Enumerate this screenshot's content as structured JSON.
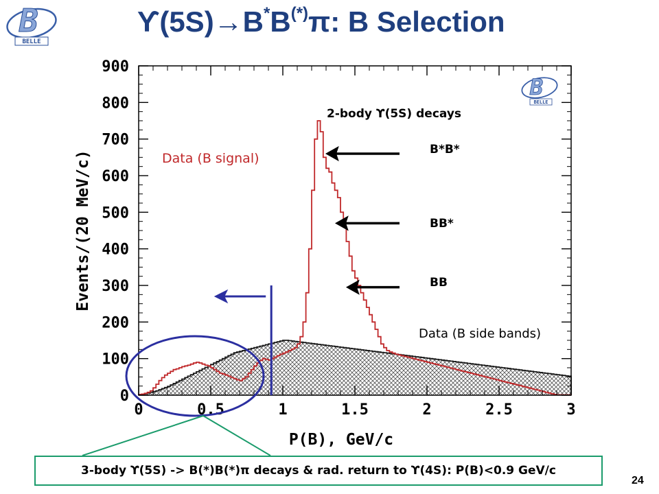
{
  "slide": {
    "title_prefix": "ϒ(5S)→B",
    "title_sup1": "*",
    "title_mid": "B",
    "title_sup2": "(*)",
    "title_suffix": "π: B Selection",
    "logo_text": "BELLE",
    "page_number": "24"
  },
  "annotations": {
    "two_body": "2-body ϒ(5S) decays",
    "bsbs": "B*B*",
    "bbs": "BB*",
    "bb": "BB",
    "signal_label": "Data (B signal)",
    "sideband_label": "Data (B side bands)",
    "bottom_box": "3-body ϒ(5S) -> B(*)B(*)π  decays & rad. return to ϒ(4S):   P(B)<0.9 GeV/c"
  },
  "colors": {
    "signal": "#c0282a",
    "sideband": "#1a1a1a",
    "title": "#1f3f7f",
    "cut_line": "#2b2fa0",
    "callout": "#1a9b6b"
  },
  "chart_data": {
    "type": "histogram",
    "xlabel": "P(B), GeV/c",
    "ylabel": "Events/(20 MeV/c)",
    "xlim": [
      0,
      3
    ],
    "ylim": [
      0,
      900
    ],
    "x_ticks": [
      "0",
      "0.5",
      "1",
      "1.5",
      "2",
      "2.5",
      "3"
    ],
    "y_ticks": [
      "0",
      "100",
      "200",
      "300",
      "400",
      "500",
      "600",
      "700",
      "800",
      "900"
    ],
    "bin_width": 0.02,
    "grid": false,
    "cut_value": 0.9,
    "series": [
      {
        "name": "Data (B signal)",
        "style": "red-outline",
        "values": [
          2,
          3,
          5,
          8,
          12,
          20,
          30,
          40,
          48,
          55,
          60,
          65,
          70,
          72,
          75,
          78,
          80,
          82,
          85,
          88,
          90,
          88,
          85,
          82,
          80,
          75,
          70,
          65,
          60,
          58,
          55,
          52,
          48,
          45,
          42,
          40,
          45,
          50,
          60,
          70,
          80,
          88,
          95,
          100,
          98,
          96,
          100,
          104,
          108,
          112,
          115,
          118,
          122,
          126,
          130,
          140,
          160,
          200,
          280,
          400,
          560,
          700,
          750,
          720,
          650,
          620,
          610,
          580,
          560,
          540,
          500,
          460,
          420,
          380,
          340,
          320,
          300,
          280,
          260,
          240,
          220,
          200,
          180,
          160,
          140,
          130,
          122,
          118,
          115,
          112,
          110,
          108,
          106,
          104,
          102,
          100,
          98,
          96,
          94,
          92,
          90,
          88,
          86,
          84,
          82,
          80,
          78,
          76,
          74,
          72,
          70,
          68,
          66,
          64,
          62,
          60,
          58,
          56,
          54,
          52,
          50,
          48,
          46,
          44,
          42,
          40,
          38,
          36,
          34,
          32,
          30,
          28,
          26,
          24,
          22,
          20,
          18,
          16,
          14,
          12,
          10,
          8,
          6,
          4,
          2,
          1,
          1,
          1,
          1,
          1
        ]
      },
      {
        "name": "Data (B side bands)",
        "style": "black-hatched",
        "values": [
          1,
          2,
          4,
          6,
          8,
          10,
          12,
          15,
          18,
          21,
          24,
          28,
          32,
          36,
          40,
          44,
          48,
          52,
          56,
          60,
          64,
          68,
          72,
          76,
          80,
          84,
          88,
          92,
          96,
          100,
          104,
          108,
          112,
          116,
          118,
          120,
          122,
          124,
          126,
          128,
          130,
          132,
          134,
          136,
          138,
          140,
          142,
          144,
          146,
          148,
          150,
          150,
          149,
          148,
          147,
          146,
          145,
          144,
          143,
          142,
          141,
          140,
          139,
          138,
          137,
          136,
          135,
          134,
          133,
          132,
          131,
          130,
          129,
          128,
          127,
          126,
          125,
          124,
          123,
          122,
          121,
          120,
          119,
          118,
          117,
          116,
          115,
          114,
          113,
          112,
          111,
          110,
          109,
          108,
          107,
          106,
          105,
          104,
          103,
          102,
          101,
          100,
          99,
          98,
          97,
          96,
          95,
          94,
          93,
          92,
          91,
          90,
          89,
          88,
          87,
          86,
          85,
          84,
          83,
          82,
          81,
          80,
          79,
          78,
          77,
          76,
          75,
          74,
          73,
          72,
          71,
          70,
          69,
          68,
          67,
          66,
          65,
          64,
          63,
          62,
          61,
          60,
          59,
          58,
          57,
          56,
          55,
          54,
          53,
          52
        ]
      }
    ]
  }
}
